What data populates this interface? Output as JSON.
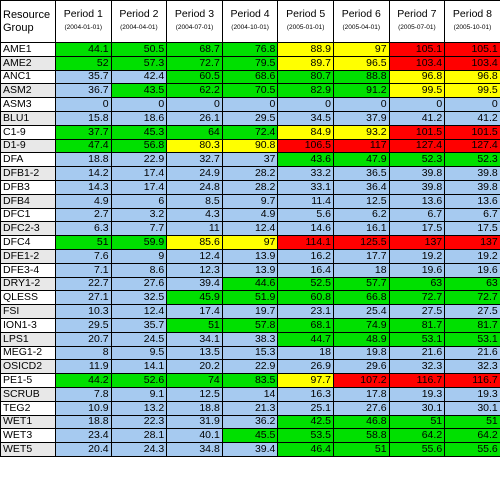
{
  "header": {
    "group_label": "Resource Group",
    "periods": [
      {
        "name": "Period 1",
        "date": "(2004-01-01)"
      },
      {
        "name": "Period 2",
        "date": "(2004-04-01)"
      },
      {
        "name": "Period 3",
        "date": "(2004-07-01)"
      },
      {
        "name": "Period 4",
        "date": "(2004-10-01)"
      },
      {
        "name": "Period 5",
        "date": "(2005-01-01)"
      },
      {
        "name": "Period 6",
        "date": "(2005-04-01)"
      },
      {
        "name": "Period 7",
        "date": "(2005-07-01)"
      },
      {
        "name": "Period 8",
        "date": "(2005-10-01)"
      }
    ]
  },
  "legend_colors": {
    "b": "#a6caf0",
    "g": "#00e000",
    "y": "#ffff00",
    "r": "#ff0000"
  },
  "rows": [
    {
      "name": "AME1",
      "values": [
        "44.1",
        "50.5",
        "68.7",
        "76.8",
        "88.9",
        "97",
        "105.1",
        "105.1"
      ],
      "colors": "ggggyyrr"
    },
    {
      "name": "AME2",
      "values": [
        "52",
        "57.3",
        "72.7",
        "79.5",
        "89.7",
        "96.5",
        "103.4",
        "103.4"
      ],
      "colors": "ggggyyrr"
    },
    {
      "name": "ANC1",
      "values": [
        "35.7",
        "42.4",
        "60.5",
        "68.6",
        "80.7",
        "88.8",
        "96.8",
        "96.8"
      ],
      "colors": "bbggggyy"
    },
    {
      "name": "ASM2",
      "values": [
        "36.7",
        "43.5",
        "62.2",
        "70.5",
        "82.9",
        "91.2",
        "99.5",
        "99.5"
      ],
      "colors": "bgggggyy"
    },
    {
      "name": "ASM3",
      "values": [
        "0",
        "0",
        "0",
        "0",
        "0",
        "0",
        "0",
        "0"
      ],
      "colors": "bbbbbbbb"
    },
    {
      "name": "BLU1",
      "values": [
        "15.8",
        "18.6",
        "26.1",
        "29.5",
        "34.5",
        "37.9",
        "41.2",
        "41.2"
      ],
      "colors": "bbbbbbbb"
    },
    {
      "name": "C1-9",
      "values": [
        "37.7",
        "45.3",
        "64",
        "72.4",
        "84.9",
        "93.2",
        "101.5",
        "101.5"
      ],
      "colors": "ggggyyrr"
    },
    {
      "name": "D1-9",
      "values": [
        "47.4",
        "56.8",
        "80.3",
        "90.8",
        "106.5",
        "117",
        "127.4",
        "127.4"
      ],
      "colors": "ggyyrrrr"
    },
    {
      "name": "DFA",
      "values": [
        "18.8",
        "22.9",
        "32.7",
        "37",
        "43.6",
        "47.9",
        "52.3",
        "52.3"
      ],
      "colors": "bbbbgggg"
    },
    {
      "name": "DFB1-2",
      "values": [
        "14.2",
        "17.4",
        "24.9",
        "28.2",
        "33.2",
        "36.5",
        "39.8",
        "39.8"
      ],
      "colors": "bbbbbbbb"
    },
    {
      "name": "DFB3",
      "values": [
        "14.3",
        "17.4",
        "24.8",
        "28.2",
        "33.1",
        "36.4",
        "39.8",
        "39.8"
      ],
      "colors": "bbbbbbbb"
    },
    {
      "name": "DFB4",
      "values": [
        "4.9",
        "6",
        "8.5",
        "9.7",
        "11.4",
        "12.5",
        "13.6",
        "13.6"
      ],
      "colors": "bbbbbbbb"
    },
    {
      "name": "DFC1",
      "values": [
        "2.7",
        "3.2",
        "4.3",
        "4.9",
        "5.6",
        "6.2",
        "6.7",
        "6.7"
      ],
      "colors": "bbbbbbbb"
    },
    {
      "name": "DFC2-3",
      "values": [
        "6.3",
        "7.7",
        "11",
        "12.4",
        "14.6",
        "16.1",
        "17.5",
        "17.5"
      ],
      "colors": "bbbbbbbb"
    },
    {
      "name": "DFC4",
      "values": [
        "51",
        "59.9",
        "85.6",
        "97",
        "114.1",
        "125.5",
        "137",
        "137"
      ],
      "colors": "ggyyrrrr"
    },
    {
      "name": "DFE1-2",
      "values": [
        "7.6",
        "9",
        "12.4",
        "13.9",
        "16.2",
        "17.7",
        "19.2",
        "19.2"
      ],
      "colors": "bbbbbbbb"
    },
    {
      "name": "DFE3-4",
      "values": [
        "7.1",
        "8.6",
        "12.3",
        "13.9",
        "16.4",
        "18",
        "19.6",
        "19.6"
      ],
      "colors": "bbbbbbbb"
    },
    {
      "name": "DRY1-2",
      "values": [
        "22.7",
        "27.6",
        "39.4",
        "44.6",
        "52.5",
        "57.7",
        "63",
        "63"
      ],
      "colors": "bbbggggg"
    },
    {
      "name": "QLESS",
      "values": [
        "27.1",
        "32.5",
        "45.9",
        "51.9",
        "60.8",
        "66.8",
        "72.7",
        "72.7"
      ],
      "colors": "bbgggggg"
    },
    {
      "name": "FSI",
      "values": [
        "10.3",
        "12.4",
        "17.4",
        "19.7",
        "23.1",
        "25.4",
        "27.5",
        "27.5"
      ],
      "colors": "bbbbbbbb"
    },
    {
      "name": "ION1-3",
      "values": [
        "29.5",
        "35.7",
        "51",
        "57.8",
        "68.1",
        "74.9",
        "81.7",
        "81.7"
      ],
      "colors": "bbgggggg"
    },
    {
      "name": "LPS1",
      "values": [
        "20.7",
        "24.5",
        "34.1",
        "38.3",
        "44.7",
        "48.9",
        "53.1",
        "53.1"
      ],
      "colors": "bbbbgggg"
    },
    {
      "name": "MEG1-2",
      "values": [
        "8",
        "9.5",
        "13.5",
        "15.3",
        "18",
        "19.8",
        "21.6",
        "21.6"
      ],
      "colors": "bbbbbbbb"
    },
    {
      "name": "OSICD2",
      "values": [
        "11.9",
        "14.1",
        "20.2",
        "22.9",
        "26.9",
        "29.6",
        "32.3",
        "32.3"
      ],
      "colors": "bbbbbbbb"
    },
    {
      "name": "PE1-5",
      "values": [
        "44.2",
        "52.6",
        "74",
        "83.5",
        "97.7",
        "107.2",
        "116.7",
        "116.7"
      ],
      "colors": "ggggyrrr"
    },
    {
      "name": "SCRUB",
      "values": [
        "7.8",
        "9.1",
        "12.5",
        "14",
        "16.3",
        "17.8",
        "19.3",
        "19.3"
      ],
      "colors": "bbbbbbbb"
    },
    {
      "name": "TEG2",
      "values": [
        "10.9",
        "13.2",
        "18.8",
        "21.3",
        "25.1",
        "27.6",
        "30.1",
        "30.1"
      ],
      "colors": "bbbbbbbb"
    },
    {
      "name": "WET1",
      "values": [
        "18.8",
        "22.3",
        "31.9",
        "36.2",
        "42.5",
        "46.8",
        "51",
        "51"
      ],
      "colors": "bbbbgggg"
    },
    {
      "name": "WET3",
      "values": [
        "23.4",
        "28.1",
        "40.1",
        "45.5",
        "53.5",
        "58.8",
        "64.2",
        "64.2"
      ],
      "colors": "bbbggggg"
    },
    {
      "name": "WET5",
      "values": [
        "20.4",
        "24.3",
        "34.8",
        "39.4",
        "46.4",
        "51",
        "55.6",
        "55.6"
      ],
      "colors": "bbbbgggg"
    }
  ]
}
